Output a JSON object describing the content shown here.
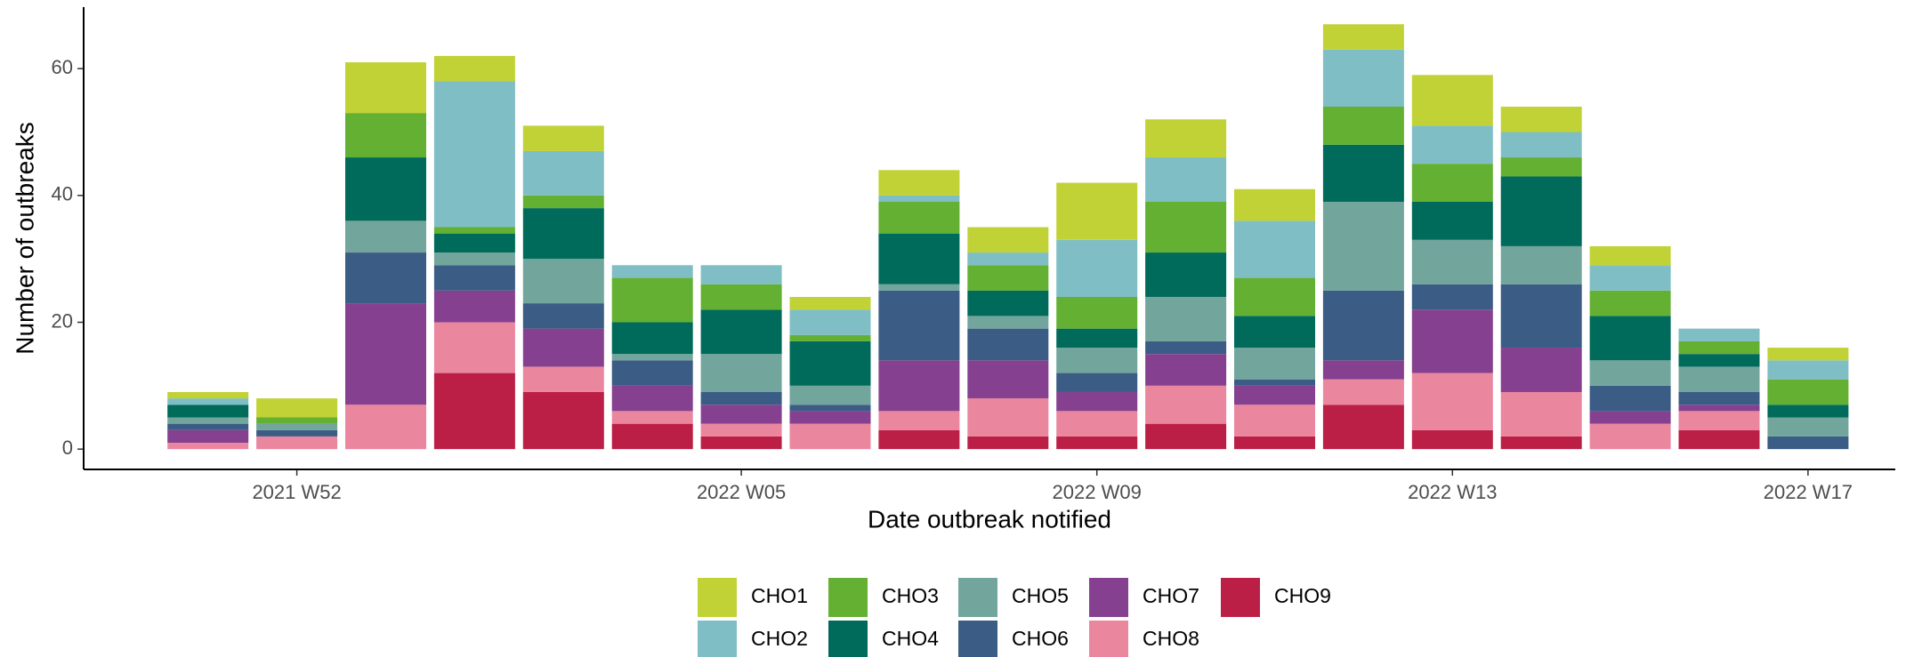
{
  "chart_data": {
    "type": "stacked_bar",
    "x_label": "Date outbreak notified",
    "y_label": "Number of outbreaks",
    "categories": [
      null,
      "2021 W52",
      null,
      null,
      null,
      null,
      "2022 W05",
      null,
      null,
      null,
      "2022 W09",
      null,
      null,
      null,
      "2022 W13",
      null,
      null,
      null,
      "2022 W17"
    ],
    "series": [
      {
        "name": "CHO1",
        "color": "#c1d236",
        "values": [
          1,
          3,
          8,
          4,
          4,
          0,
          0,
          2,
          4,
          4,
          9,
          6,
          5,
          4,
          8,
          4,
          3,
          0,
          2
        ]
      },
      {
        "name": "CHO2",
        "color": "#7fbec4",
        "values": [
          1,
          0,
          0,
          23,
          7,
          2,
          3,
          4,
          1,
          2,
          9,
          7,
          9,
          9,
          6,
          4,
          4,
          2,
          3
        ]
      },
      {
        "name": "CHO3",
        "color": "#63b033",
        "values": [
          0,
          1,
          7,
          1,
          2,
          7,
          4,
          1,
          5,
          4,
          5,
          8,
          6,
          6,
          6,
          3,
          4,
          2,
          4
        ]
      },
      {
        "name": "CHO4",
        "color": "#006b5b",
        "values": [
          2,
          0,
          10,
          3,
          8,
          5,
          7,
          7,
          8,
          4,
          3,
          7,
          5,
          9,
          6,
          11,
          7,
          2,
          2
        ]
      },
      {
        "name": "CHO5",
        "color": "#72a59c",
        "values": [
          1,
          1,
          5,
          2,
          7,
          1,
          6,
          3,
          1,
          2,
          4,
          7,
          5,
          14,
          7,
          6,
          4,
          4,
          3
        ]
      },
      {
        "name": "CHO6",
        "color": "#3b5c85",
        "values": [
          1,
          1,
          8,
          4,
          4,
          4,
          2,
          1,
          11,
          5,
          3,
          2,
          1,
          11,
          4,
          10,
          4,
          2,
          2
        ]
      },
      {
        "name": "CHO7",
        "color": "#85418f",
        "values": [
          2,
          0,
          16,
          5,
          6,
          4,
          3,
          2,
          8,
          6,
          3,
          5,
          3,
          3,
          10,
          7,
          2,
          1,
          0
        ]
      },
      {
        "name": "CHO8",
        "color": "#ea879f",
        "values": [
          1,
          2,
          7,
          8,
          4,
          2,
          2,
          4,
          3,
          6,
          4,
          6,
          5,
          4,
          9,
          7,
          4,
          3,
          0
        ]
      },
      {
        "name": "CHO9",
        "color": "#bc1f45",
        "values": [
          0,
          0,
          0,
          12,
          9,
          4,
          2,
          0,
          3,
          2,
          2,
          4,
          2,
          7,
          3,
          2,
          0,
          3,
          0
        ]
      }
    ],
    "ylim": [
      -3.2,
      69.7
    ],
    "yticks": [
      0,
      20,
      40,
      60
    ],
    "grid": false,
    "legend": "bottom"
  }
}
